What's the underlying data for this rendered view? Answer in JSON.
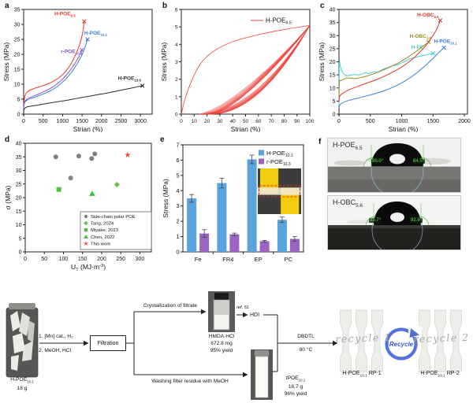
{
  "panel_letters": {
    "a": "a",
    "b": "b",
    "c": "c",
    "d": "d",
    "e": "e",
    "f": "f"
  },
  "chart_data": [
    {
      "panel": "a",
      "type": "line",
      "title": "",
      "xlabel": "Strian (%)",
      "ylabel": "Stress (MPa)",
      "xlim": [
        0,
        3300
      ],
      "ylim": [
        0,
        35
      ],
      "xticks": [
        0,
        500,
        1000,
        1500,
        2000,
        2500,
        3000
      ],
      "yticks": [
        0,
        5,
        10,
        15,
        20,
        25,
        30,
        35
      ],
      "series": [
        {
          "name": "H-POE_{6.5}",
          "color": "#e8392b",
          "end_marker": true,
          "label_at": [
            1060,
            33.0
          ],
          "points": [
            [
              0,
              1.8
            ],
            [
              15,
              4.6
            ],
            [
              40,
              6.3
            ],
            [
              80,
              7.3
            ],
            [
              150,
              7.9
            ],
            [
              300,
              8.7
            ],
            [
              450,
              9.3
            ],
            [
              600,
              10.0
            ],
            [
              750,
              10.9
            ],
            [
              900,
              12.1
            ],
            [
              1050,
              13.9
            ],
            [
              1200,
              16.5
            ],
            [
              1350,
              20.3
            ],
            [
              1450,
              23.8
            ],
            [
              1520,
              27.5
            ],
            [
              1555,
              31.0
            ]
          ]
        },
        {
          "name": "H-POE_{10.1}",
          "color": "#3b7fd4",
          "end_marker": true,
          "label_at": [
            1850,
            26.6
          ],
          "points": [
            [
              0,
              1.5
            ],
            [
              15,
              3.4
            ],
            [
              50,
              4.3
            ],
            [
              120,
              4.9
            ],
            [
              250,
              5.5
            ],
            [
              400,
              6.2
            ],
            [
              550,
              7.0
            ],
            [
              700,
              7.9
            ],
            [
              850,
              9.1
            ],
            [
              1000,
              10.7
            ],
            [
              1150,
              12.7
            ],
            [
              1300,
              15.3
            ],
            [
              1450,
              18.6
            ],
            [
              1560,
              21.8
            ],
            [
              1640,
              25.0
            ]
          ]
        },
        {
          "name": "r-POE_{10.3}",
          "color": "#8a52c8",
          "end_marker": true,
          "label_at": [
            1230,
            20.4
          ],
          "points": [
            [
              0,
              1.6
            ],
            [
              15,
              3.7
            ],
            [
              50,
              4.6
            ],
            [
              120,
              5.3
            ],
            [
              250,
              6.0
            ],
            [
              400,
              6.8
            ],
            [
              550,
              7.7
            ],
            [
              700,
              8.7
            ],
            [
              850,
              10.0
            ],
            [
              1000,
              11.7
            ],
            [
              1150,
              13.9
            ],
            [
              1300,
              16.6
            ],
            [
              1420,
              19.3
            ],
            [
              1495,
              21.4
            ]
          ]
        },
        {
          "name": "H-POE_{13.6}",
          "color": "#2b2b2b",
          "end_marker": true,
          "label_at": [
            2720,
            11.4
          ],
          "points": [
            [
              0,
              1.0
            ],
            [
              40,
              2.1
            ],
            [
              150,
              2.6
            ],
            [
              400,
              3.1
            ],
            [
              700,
              3.8
            ],
            [
              1000,
              4.4
            ],
            [
              1300,
              5.1
            ],
            [
              1600,
              5.8
            ],
            [
              1900,
              6.5
            ],
            [
              2200,
              7.2
            ],
            [
              2500,
              8.0
            ],
            [
              2800,
              8.8
            ],
            [
              3050,
              9.5
            ]
          ]
        }
      ]
    },
    {
      "panel": "b",
      "type": "cycles",
      "name": "H-POE_{6.5}",
      "color": "#ee4038",
      "xlabel": "Strian (%)",
      "ylabel": "Stress (MPa)",
      "xlim": [
        0,
        100
      ],
      "ylim": [
        0,
        6
      ],
      "xticks": [
        0,
        10,
        20,
        30,
        40,
        50,
        60,
        70,
        80,
        90,
        100
      ],
      "yticks": [
        0,
        1,
        2,
        3,
        4,
        5,
        6
      ],
      "first_loading": [
        [
          0,
          0
        ],
        [
          3,
          0.9
        ],
        [
          8,
          1.9
        ],
        [
          15,
          2.9
        ],
        [
          25,
          3.6
        ],
        [
          40,
          4.15
        ],
        [
          60,
          4.55
        ],
        [
          80,
          4.85
        ],
        [
          100,
          5.08
        ]
      ],
      "converge": [
        100,
        5.08
      ],
      "residual_strains": [
        14,
        16,
        17.5,
        19,
        20,
        21,
        21.8,
        22.5,
        23.2,
        23.8
      ]
    },
    {
      "panel": "c",
      "type": "line",
      "xlabel": "Strian (%)",
      "ylabel": "Stress (MPa)",
      "xlim": [
        0,
        2050
      ],
      "ylim": [
        0,
        40
      ],
      "xticks": [
        0,
        500,
        1000,
        1500,
        2000
      ],
      "yticks": [
        0,
        5,
        10,
        15,
        20,
        25,
        30,
        35,
        40
      ],
      "series": [
        {
          "name": "H-PE",
          "color": "#45c8d8",
          "end_marker": true,
          "label_at": [
            1250,
            24.9
          ],
          "points": [
            [
              0,
              3.0
            ],
            [
              5,
              19.3
            ],
            [
              15,
              19.0
            ],
            [
              30,
              17.5
            ],
            [
              60,
              15.8
            ],
            [
              100,
              14.9
            ],
            [
              150,
              14.7
            ],
            [
              200,
              15.0
            ],
            [
              260,
              15.1
            ],
            [
              320,
              15.0
            ],
            [
              380,
              15.4
            ],
            [
              430,
              15.9
            ],
            [
              470,
              15.5
            ],
            [
              520,
              15.9
            ],
            [
              570,
              16.2
            ],
            [
              620,
              16.1
            ],
            [
              670,
              16.7
            ],
            [
              720,
              17.3
            ],
            [
              780,
              17.8
            ],
            [
              840,
              18.4
            ],
            [
              900,
              18.6
            ],
            [
              960,
              19.2
            ],
            [
              1020,
              19.8
            ],
            [
              1080,
              20.5
            ],
            [
              1140,
              21.1
            ],
            [
              1200,
              21.6
            ],
            [
              1270,
              22.0
            ],
            [
              1340,
              22.4
            ],
            [
              1420,
              22.8
            ],
            [
              1500,
              23.2
            ]
          ]
        },
        {
          "name": "H-OBC_{1.8}",
          "color": "#9c8b22",
          "end_marker": true,
          "label_at": [
            1300,
            29.2
          ],
          "points": [
            [
              0,
              6.5
            ],
            [
              8,
              12.3
            ],
            [
              30,
              12.8
            ],
            [
              80,
              13.4
            ],
            [
              150,
              13.8
            ],
            [
              250,
              13.6
            ],
            [
              350,
              14.0
            ],
            [
              450,
              14.6
            ],
            [
              550,
              15.4
            ],
            [
              650,
              16.3
            ],
            [
              750,
              17.3
            ],
            [
              850,
              18.4
            ],
            [
              950,
              19.6
            ],
            [
              1050,
              21.0
            ],
            [
              1150,
              22.6
            ],
            [
              1250,
              24.3
            ],
            [
              1350,
              26.1
            ],
            [
              1430,
              27.6
            ]
          ]
        },
        {
          "name": "H-OBC_{5.6}",
          "color": "#d63a2f",
          "end_marker": true,
          "label_at": [
            1420,
            37.3
          ],
          "points": [
            [
              0,
              4.5
            ],
            [
              10,
              6.8
            ],
            [
              50,
              7.8
            ],
            [
              150,
              9.2
            ],
            [
              300,
              10.6
            ],
            [
              450,
              11.9
            ],
            [
              600,
              13.2
            ],
            [
              750,
              14.8
            ],
            [
              900,
              16.6
            ],
            [
              1050,
              18.8
            ],
            [
              1200,
              21.6
            ],
            [
              1350,
              25.2
            ],
            [
              1450,
              28.3
            ],
            [
              1550,
              32.0
            ],
            [
              1615,
              35.8
            ]
          ]
        },
        {
          "name": "H-POE_{10.1}",
          "color": "#3b7fd4",
          "end_marker": true,
          "label_at": [
            1700,
            27.2
          ],
          "points": [
            [
              0,
              2.2
            ],
            [
              15,
              3.6
            ],
            [
              60,
              4.4
            ],
            [
              150,
              5.2
            ],
            [
              300,
              6.1
            ],
            [
              450,
              7.0
            ],
            [
              600,
              8.0
            ],
            [
              750,
              9.2
            ],
            [
              900,
              10.7
            ],
            [
              1050,
              12.6
            ],
            [
              1200,
              15.0
            ],
            [
              1350,
              18.0
            ],
            [
              1500,
              21.3
            ],
            [
              1600,
              23.7
            ],
            [
              1675,
              25.4
            ]
          ]
        }
      ]
    },
    {
      "panel": "d",
      "type": "scatter",
      "xlabel": "U_{T} (MJ·m^{-3})",
      "ylabel": "σ (MPa)",
      "xlim": [
        0,
        330
      ],
      "ylim": [
        0,
        40
      ],
      "xticks": [
        0,
        50,
        100,
        150,
        200,
        250,
        300
      ],
      "yticks": [
        0,
        5,
        10,
        15,
        20,
        25,
        30,
        35,
        40
      ],
      "groups": [
        {
          "name": "Side-chain polar POE",
          "marker": "circle",
          "color": "#7f7f7f",
          "points": [
            [
              80,
              35.0
            ],
            [
              119,
              27.2
            ],
            [
              140,
              35.3
            ],
            [
              174,
              34.4
            ],
            [
              182,
              36.1
            ]
          ]
        },
        {
          "name": "Tang, 2024",
          "marker": "diamond",
          "color": "#6abf45",
          "points": [
            [
              240,
              24.8
            ]
          ]
        },
        {
          "name": "Miyake, 2023",
          "marker": "square",
          "color": "#55bb47",
          "points": [
            [
              88,
              23.0
            ]
          ]
        },
        {
          "name": "Chen, 2022",
          "marker": "triangle",
          "color": "#47b93e",
          "points": [
            [
              175,
              21.5
            ]
          ]
        },
        {
          "name": "This work",
          "marker": "star",
          "color": "#e8392b",
          "points": [
            [
              268,
              35.7
            ]
          ]
        }
      ]
    },
    {
      "panel": "e",
      "type": "bar",
      "xlabel": "",
      "ylabel": "Stress (MPa)",
      "ylim": [
        0,
        7
      ],
      "yticks": [
        0,
        1,
        2,
        3,
        4,
        5,
        6,
        7
      ],
      "categories": [
        "Fe",
        "FR4",
        "EP",
        "PC"
      ],
      "series": [
        {
          "name": "H-POE_{10.1}",
          "color": "#5ba3dc",
          "values": [
            3.5,
            4.5,
            6.05,
            2.1
          ],
          "errors": [
            0.25,
            0.32,
            0.28,
            0.18
          ]
        },
        {
          "name": "r-POE_{10.3}",
          "color": "#9a63c4",
          "values": [
            1.2,
            1.15,
            0.7,
            0.85
          ],
          "errors": [
            0.25,
            0.08,
            0.05,
            0.15
          ]
        }
      ]
    }
  ],
  "panel_f": {
    "sample1": {
      "main": "H-POE",
      "sub": "6.5",
      "angle_left": "85.0°",
      "angle_right": "84.5°"
    },
    "sample2": {
      "main": "H-OBC",
      "sub": "5.6",
      "angle_left": "93.7°",
      "angle_right": "92.8°"
    }
  },
  "scheme": {
    "start": {
      "main": "H-POE",
      "sub": "10.1",
      "mass": "18 g"
    },
    "step": {
      "line1": "1. [Mn] cat., H₂",
      "line2": "2. MeOH, HCl"
    },
    "filtration": "Filtration",
    "top_branch": "Crystallization of filtrate",
    "product1": {
      "name": "HMDA·HCl",
      "mass": "672.8 mg",
      "yield": "95% yield"
    },
    "ref": "ref. 51",
    "hdi": "HDI",
    "bottom_branch": "Washing filter residue with MeOH",
    "product2": {
      "prefix": "t",
      "main": "POE",
      "sub": "10.1",
      "mass": "16.7 g",
      "yield": "96% yield"
    },
    "conditions": {
      "line1": "DBDTL",
      "line2": "80 °C"
    },
    "recycle_left": "recycle 1",
    "recycle_right": "recycle 2",
    "logo": "Recycle",
    "rp1": {
      "main": "H-POE",
      "sub": "10.1",
      "suffix": " RP-1"
    },
    "rp2": {
      "main": "H-POE",
      "sub": "10.1",
      "suffix": " RP-2"
    }
  }
}
